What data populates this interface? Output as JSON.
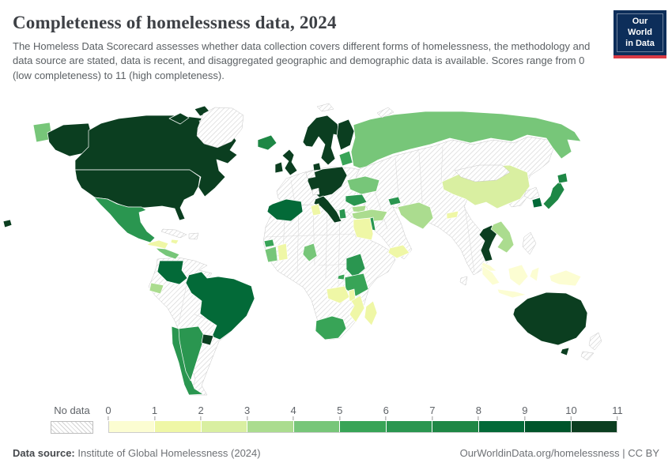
{
  "header": {
    "title": "Completeness of homelessness data, 2024",
    "subtitle": "The Homeless Data Scorecard assesses whether data collection covers different forms of homelessness, the methodology and data source are stated, data is recent, and disaggregated geographic and demographic data is available. Scores range from 0 (low completeness) to 11 (high completeness).",
    "logo_line1": "Our World",
    "logo_line2": "in Data",
    "logo_bg": "#0d2e5a",
    "logo_red": "#d93a45"
  },
  "legend": {
    "no_data_label": "No data",
    "tick_labels": [
      "0",
      "1",
      "2",
      "3",
      "4",
      "5",
      "6",
      "7",
      "8",
      "9",
      "10",
      "11"
    ]
  },
  "footer": {
    "source_label": "Data source:",
    "source_value": " Institute of Global Homelessness (2024)",
    "right_text": "OurWorldinData.org/homelessness | CC BY"
  },
  "chart_data": {
    "type": "choropleth-map",
    "title": "Completeness of homelessness data",
    "year": "2024",
    "score_range": [
      0,
      11
    ],
    "no_data_style": "hatched",
    "nodata_border": "#c6c6c6",
    "border_color": "#ffffff",
    "hatch_line_color": "#d4d4d4",
    "palette": [
      "#fcfdd2",
      "#eff7a6",
      "#d9efa1",
      "#abdc8f",
      "#77c679",
      "#38a457",
      "#2a9650",
      "#1e8745",
      "#036a38",
      "#00552b",
      "#0b3e20"
    ],
    "regions": [
      {
        "id": "hawaii",
        "name": "Hawaii (United States)",
        "level": 10
      },
      {
        "id": "russia-pacific-fragment",
        "name": "Russia (east fragment)",
        "level": 4
      },
      {
        "id": "alaska",
        "name": "Alaska (United States)",
        "level": 10
      },
      {
        "id": "canada",
        "name": "Canada",
        "level": 10
      },
      {
        "id": "greenland",
        "name": "Greenland",
        "level": null
      },
      {
        "id": "usa",
        "name": "United States",
        "level": 10
      },
      {
        "id": "mexico",
        "name": "Mexico",
        "level": 6
      },
      {
        "id": "guatemala-honduras",
        "name": "Guatemala & Honduras",
        "level": 1
      },
      {
        "id": "central-america",
        "name": "Nicaragua, Costa Rica & Panama",
        "level": 4
      },
      {
        "id": "cuba",
        "name": "Cuba",
        "level": null
      },
      {
        "id": "jamaica",
        "name": "Jamaica",
        "level": 1
      },
      {
        "id": "hispaniola",
        "name": "Hispaniola",
        "level": null
      },
      {
        "id": "colombia",
        "name": "Colombia",
        "level": 8
      },
      {
        "id": "ecuador",
        "name": "Ecuador",
        "level": 3
      },
      {
        "id": "south-america-nodata",
        "name": "South America (no data)",
        "level": null
      },
      {
        "id": "brazil",
        "name": "Brazil",
        "level": 8
      },
      {
        "id": "chile",
        "name": "Chile",
        "level": 6
      },
      {
        "id": "argentina",
        "name": "Argentina",
        "level": 6
      },
      {
        "id": "uruguay",
        "name": "Uruguay",
        "level": 10
      },
      {
        "id": "europe-nodata",
        "name": "Europe (no data)",
        "level": null
      },
      {
        "id": "iceland",
        "name": "Iceland",
        "level": 7
      },
      {
        "id": "norway-sweden",
        "name": "Norway & Sweden",
        "level": 10
      },
      {
        "id": "finland",
        "name": "Finland",
        "level": 10
      },
      {
        "id": "denmark",
        "name": "Denmark",
        "level": 10
      },
      {
        "id": "uk",
        "name": "United Kingdom",
        "level": 10
      },
      {
        "id": "ireland",
        "name": "Ireland",
        "level": 10
      },
      {
        "id": "central-europe",
        "name": "Germany & Central Europe",
        "level": 10
      },
      {
        "id": "benelux",
        "name": "Benelux",
        "level": null
      },
      {
        "id": "switzerland",
        "name": "Switzerland",
        "level": null
      },
      {
        "id": "italy",
        "name": "Italy",
        "level": 10
      },
      {
        "id": "baltics",
        "name": "Baltic states",
        "level": 5
      },
      {
        "id": "ukraine",
        "name": "Ukraine",
        "level": 4
      },
      {
        "id": "romania",
        "name": "Romania",
        "level": 6
      },
      {
        "id": "bulgaria",
        "name": "Bulgaria",
        "level": 3
      },
      {
        "id": "albania",
        "name": "Albania",
        "level": 6
      },
      {
        "id": "turkey",
        "name": "Turkey",
        "level": 3
      },
      {
        "id": "caucasus",
        "name": "Azerbaijan",
        "level": 6
      },
      {
        "id": "cyprus",
        "name": "Cyprus",
        "level": 1
      },
      {
        "id": "israel-jordan",
        "name": "Israel & Jordan",
        "level": 6
      },
      {
        "id": "russia",
        "name": "Russia",
        "level": 4
      },
      {
        "id": "novaya-zemlya",
        "name": "Novaya Zemlya",
        "level": null
      },
      {
        "id": "svalbard",
        "name": "Svalbard",
        "level": null
      },
      {
        "id": "asia-nodata",
        "name": "Asia & Middle East (no data)",
        "level": null
      },
      {
        "id": "china",
        "name": "China",
        "level": 2
      },
      {
        "id": "mongolia",
        "name": "Mongolia",
        "level": null
      },
      {
        "id": "nepal",
        "name": "Nepal",
        "level": 1
      },
      {
        "id": "iran",
        "name": "Iran",
        "level": 3
      },
      {
        "id": "yemen",
        "name": "Yemen",
        "level": 1
      },
      {
        "id": "egypt",
        "name": "Egypt",
        "level": 1
      },
      {
        "id": "thailand",
        "name": "Thailand",
        "level": 10
      },
      {
        "id": "vietnam-laos",
        "name": "Vietnam, Laos & Cambodia",
        "level": 3
      },
      {
        "id": "malaysia",
        "name": "Malaysia",
        "level": 0
      },
      {
        "id": "north-korea",
        "name": "North Korea",
        "level": null
      },
      {
        "id": "south-korea",
        "name": "South Korea",
        "level": 8
      },
      {
        "id": "japan",
        "name": "Japan",
        "level": 7
      },
      {
        "id": "philippines",
        "name": "Philippines",
        "level": null
      },
      {
        "id": "sri-lanka",
        "name": "Sri Lanka",
        "level": null
      },
      {
        "id": "sumatra",
        "name": "Indonesia (Sumatra)",
        "level": 0
      },
      {
        "id": "java",
        "name": "Indonesia (Java)",
        "level": 0
      },
      {
        "id": "borneo",
        "name": "Borneo",
        "level": 0
      },
      {
        "id": "sulawesi",
        "name": "Indonesia (Sulawesi)",
        "level": 0
      },
      {
        "id": "new-guinea",
        "name": "New Guinea",
        "level": 0
      },
      {
        "id": "australia",
        "name": "Australia",
        "level": 10
      },
      {
        "id": "tasmania",
        "name": "Tasmania",
        "level": 10
      },
      {
        "id": "new-zealand",
        "name": "New Zealand",
        "level": null
      },
      {
        "id": "africa-nodata",
        "name": "Africa (no data)",
        "level": null
      },
      {
        "id": "tunisia",
        "name": "Tunisia",
        "level": 1
      },
      {
        "id": "senegal",
        "name": "Senegal",
        "level": 5
      },
      {
        "id": "ivory-coast",
        "name": "Cote d'Ivoire",
        "level": 4
      },
      {
        "id": "ghana",
        "name": "Ghana",
        "level": 1
      },
      {
        "id": "cameroon",
        "name": "Cameroon",
        "level": 4
      },
      {
        "id": "kenya",
        "name": "Kenya",
        "level": 6
      },
      {
        "id": "rwanda",
        "name": "Rwanda",
        "level": 5
      },
      {
        "id": "tanzania",
        "name": "Tanzania",
        "level": 5
      },
      {
        "id": "zambia",
        "name": "Zambia",
        "level": 1
      },
      {
        "id": "malawi",
        "name": "Malawi",
        "level": 1
      },
      {
        "id": "mozambique",
        "name": "Mozambique",
        "level": 1
      },
      {
        "id": "madagascar",
        "name": "Madagascar",
        "level": 1
      },
      {
        "id": "south-africa",
        "name": "South Africa",
        "level": 5
      }
    ]
  }
}
